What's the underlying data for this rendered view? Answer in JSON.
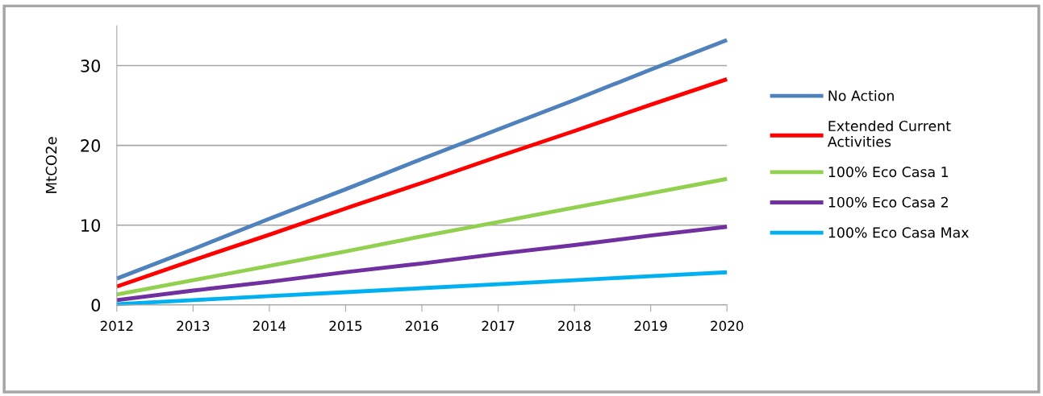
{
  "chart_data": {
    "type": "line",
    "ylabel": "MtCO2e",
    "x": [
      2012,
      2013,
      2014,
      2015,
      2016,
      2017,
      2018,
      2019,
      2020
    ],
    "xlim": [
      2012,
      2020
    ],
    "xticks": [
      2012,
      2013,
      2014,
      2015,
      2016,
      2017,
      2018,
      2019,
      2020
    ],
    "ylim": [
      0,
      35
    ],
    "yticks": [
      0,
      10,
      20,
      30
    ],
    "grid": "y",
    "legend": "right",
    "marker": "none",
    "line_style": "solid",
    "series": [
      {
        "name": "No Action",
        "color": "#4f81bd",
        "values": [
          3.3,
          7.0,
          10.8,
          14.5,
          18.3,
          22.0,
          25.7,
          29.5,
          33.2
        ]
      },
      {
        "name": "Extended Current\nActivities",
        "color": "#ff0000",
        "values": [
          2.3,
          5.6,
          8.8,
          12.1,
          15.3,
          18.6,
          21.8,
          25.1,
          28.3
        ]
      },
      {
        "name": "100% Eco Casa 1",
        "color": "#92d050",
        "values": [
          1.3,
          3.1,
          4.9,
          6.7,
          8.6,
          10.4,
          12.2,
          14.0,
          15.8
        ]
      },
      {
        "name": "100% Eco Casa 2",
        "color": "#7030a0",
        "values": [
          0.6,
          1.8,
          2.9,
          4.1,
          5.2,
          6.4,
          7.5,
          8.7,
          9.8
        ]
      },
      {
        "name": "100% Eco Casa Max",
        "color": "#00b0f0",
        "values": [
          0.1,
          0.6,
          1.1,
          1.6,
          2.1,
          2.6,
          3.1,
          3.6,
          4.1
        ]
      }
    ]
  }
}
